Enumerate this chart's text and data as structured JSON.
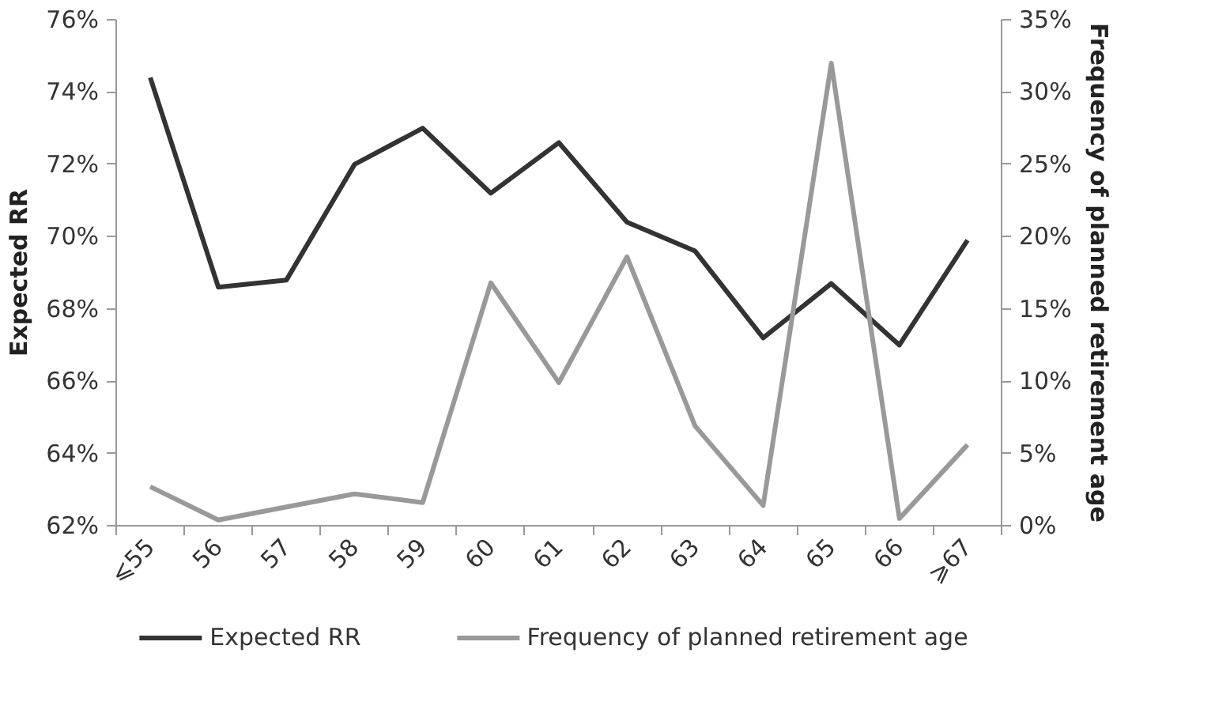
{
  "chart_data": {
    "type": "line",
    "ylabel": "Expected RR",
    "y2label": "Frequency of planned retirement age",
    "categories": [
      "⩽55",
      "56",
      "57",
      "58",
      "59",
      "60",
      "61",
      "62",
      "63",
      "64",
      "65",
      "66",
      "⩾67"
    ],
    "series": [
      {
        "name": "Expected RR",
        "color": "#333333",
        "values": [
          74.4,
          68.6,
          68.8,
          72.0,
          73.0,
          71.2,
          72.6,
          70.4,
          69.6,
          67.2,
          68.7,
          67.0,
          69.9
        ]
      },
      {
        "name": "Frequency of planned retirement age",
        "color": "#999999",
        "axis": "y2",
        "values": [
          2.7,
          0.4,
          1.3,
          2.2,
          1.6,
          16.8,
          9.9,
          18.6,
          6.9,
          1.4,
          32.0,
          0.5,
          5.6
        ]
      }
    ],
    "ylim": [
      62,
      76
    ],
    "yticks": [
      {
        "value": 62,
        "label": "62%"
      },
      {
        "value": 64,
        "label": "64%"
      },
      {
        "value": 66,
        "label": "66%"
      },
      {
        "value": 68,
        "label": "68%"
      },
      {
        "value": 70,
        "label": "70%"
      },
      {
        "value": 72,
        "label": "72%"
      },
      {
        "value": 74,
        "label": "74%"
      },
      {
        "value": 76,
        "label": "76%"
      }
    ],
    "y2lim": [
      0,
      35
    ],
    "y2ticks": [
      {
        "value": 0,
        "label": "0%"
      },
      {
        "value": 5,
        "label": "5%"
      },
      {
        "value": 10,
        "label": "10%"
      },
      {
        "value": 15,
        "label": "15%"
      },
      {
        "value": 20,
        "label": "20%"
      },
      {
        "value": 25,
        "label": "25%"
      },
      {
        "value": 30,
        "label": "30%"
      },
      {
        "value": 35,
        "label": "35%"
      }
    ],
    "grid": false,
    "legend": "bottom",
    "line_style": "solid",
    "marker": "none"
  }
}
